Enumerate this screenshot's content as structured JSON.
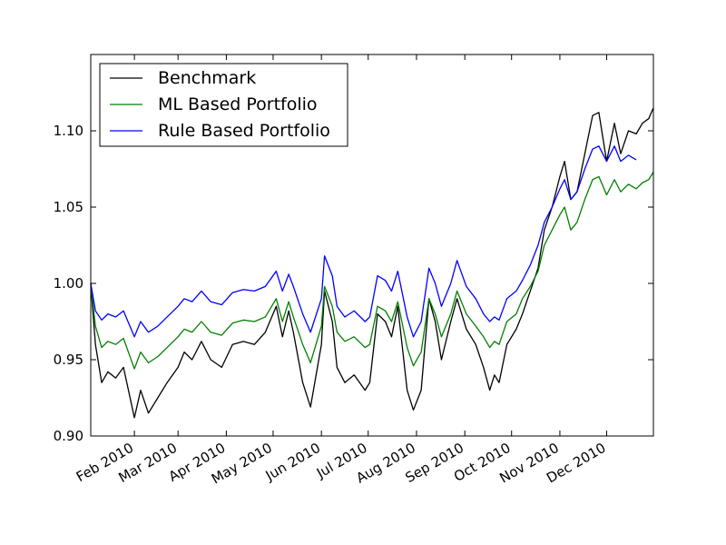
{
  "chart_data": {
    "type": "line",
    "title": "",
    "xlabel": "",
    "ylabel": "",
    "x_start": "2010-01-04",
    "x_end": "2010-12-31",
    "xlim": [
      "2010-01-04",
      "2010-12-31"
    ],
    "ylim": [
      0.9,
      1.15
    ],
    "x_ticks": [
      {
        "date": "2010-02-01",
        "label": "Feb 2010"
      },
      {
        "date": "2010-03-01",
        "label": "Mar 2010"
      },
      {
        "date": "2010-04-01",
        "label": "Apr 2010"
      },
      {
        "date": "2010-05-01",
        "label": "May 2010"
      },
      {
        "date": "2010-06-01",
        "label": "Jun 2010"
      },
      {
        "date": "2010-07-01",
        "label": "Jul 2010"
      },
      {
        "date": "2010-08-01",
        "label": "Aug 2010"
      },
      {
        "date": "2010-09-01",
        "label": "Sep 2010"
      },
      {
        "date": "2010-10-01",
        "label": "Oct 2010"
      },
      {
        "date": "2010-11-01",
        "label": "Nov 2010"
      },
      {
        "date": "2010-12-01",
        "label": "Dec 2010"
      }
    ],
    "y_ticks": [
      {
        "value": 0.9,
        "label": "0.90"
      },
      {
        "value": 0.95,
        "label": "0.95"
      },
      {
        "value": 1.0,
        "label": "1.00"
      },
      {
        "value": 1.05,
        "label": "1.05"
      },
      {
        "value": 1.1,
        "label": "1.10"
      }
    ],
    "grid": false,
    "legend_position": "top-left",
    "series": [
      {
        "name": "Benchmark",
        "color": "#000000",
        "points": [
          [
            "2010-01-04",
            1.0
          ],
          [
            "2010-01-07",
            0.96
          ],
          [
            "2010-01-11",
            0.935
          ],
          [
            "2010-01-15",
            0.942
          ],
          [
            "2010-01-20",
            0.938
          ],
          [
            "2010-01-25",
            0.945
          ],
          [
            "2010-02-01",
            0.912
          ],
          [
            "2010-02-05",
            0.93
          ],
          [
            "2010-02-10",
            0.915
          ],
          [
            "2010-02-16",
            0.925
          ],
          [
            "2010-02-22",
            0.935
          ],
          [
            "2010-03-01",
            0.945
          ],
          [
            "2010-03-05",
            0.955
          ],
          [
            "2010-03-10",
            0.95
          ],
          [
            "2010-03-16",
            0.962
          ],
          [
            "2010-03-22",
            0.95
          ],
          [
            "2010-03-29",
            0.945
          ],
          [
            "2010-04-05",
            0.96
          ],
          [
            "2010-04-12",
            0.962
          ],
          [
            "2010-04-19",
            0.96
          ],
          [
            "2010-04-26",
            0.968
          ],
          [
            "2010-05-03",
            0.985
          ],
          [
            "2010-05-07",
            0.965
          ],
          [
            "2010-05-11",
            0.982
          ],
          [
            "2010-05-14",
            0.968
          ],
          [
            "2010-05-20",
            0.935
          ],
          [
            "2010-05-25",
            0.919
          ],
          [
            "2010-06-01",
            0.96
          ],
          [
            "2010-06-03",
            0.995
          ],
          [
            "2010-06-08",
            0.975
          ],
          [
            "2010-06-11",
            0.945
          ],
          [
            "2010-06-16",
            0.935
          ],
          [
            "2010-06-22",
            0.94
          ],
          [
            "2010-06-29",
            0.93
          ],
          [
            "2010-07-02",
            0.935
          ],
          [
            "2010-07-07",
            0.98
          ],
          [
            "2010-07-12",
            0.975
          ],
          [
            "2010-07-16",
            0.965
          ],
          [
            "2010-07-20",
            0.985
          ],
          [
            "2010-07-26",
            0.93
          ],
          [
            "2010-07-30",
            0.917
          ],
          [
            "2010-08-04",
            0.93
          ],
          [
            "2010-08-09",
            0.99
          ],
          [
            "2010-08-13",
            0.975
          ],
          [
            "2010-08-17",
            0.95
          ],
          [
            "2010-08-23",
            0.975
          ],
          [
            "2010-08-27",
            0.99
          ],
          [
            "2010-09-02",
            0.97
          ],
          [
            "2010-09-08",
            0.96
          ],
          [
            "2010-09-13",
            0.945
          ],
          [
            "2010-09-17",
            0.93
          ],
          [
            "2010-09-20",
            0.94
          ],
          [
            "2010-09-23",
            0.935
          ],
          [
            "2010-09-28",
            0.96
          ],
          [
            "2010-10-04",
            0.97
          ],
          [
            "2010-10-08",
            0.98
          ],
          [
            "2010-10-13",
            0.995
          ],
          [
            "2010-10-18",
            1.01
          ],
          [
            "2010-10-22",
            1.035
          ],
          [
            "2010-10-27",
            1.05
          ],
          [
            "2010-11-01",
            1.07
          ],
          [
            "2010-11-04",
            1.08
          ],
          [
            "2010-11-08",
            1.055
          ],
          [
            "2010-11-12",
            1.06
          ],
          [
            "2010-11-17",
            1.085
          ],
          [
            "2010-11-22",
            1.11
          ],
          [
            "2010-11-26",
            1.112
          ],
          [
            "2010-12-01",
            1.08
          ],
          [
            "2010-12-06",
            1.105
          ],
          [
            "2010-12-10",
            1.085
          ],
          [
            "2010-12-15",
            1.1
          ],
          [
            "2010-12-20",
            1.098
          ],
          [
            "2010-12-24",
            1.105
          ],
          [
            "2010-12-28",
            1.108
          ],
          [
            "2010-12-31",
            1.115
          ]
        ]
      },
      {
        "name": "ML Based Portfolio",
        "color": "#008000",
        "points": [
          [
            "2010-01-04",
            1.0
          ],
          [
            "2010-01-07",
            0.972
          ],
          [
            "2010-01-11",
            0.958
          ],
          [
            "2010-01-15",
            0.962
          ],
          [
            "2010-01-20",
            0.96
          ],
          [
            "2010-01-25",
            0.964
          ],
          [
            "2010-02-01",
            0.944
          ],
          [
            "2010-02-05",
            0.955
          ],
          [
            "2010-02-10",
            0.948
          ],
          [
            "2010-02-16",
            0.952
          ],
          [
            "2010-02-22",
            0.958
          ],
          [
            "2010-03-01",
            0.965
          ],
          [
            "2010-03-05",
            0.97
          ],
          [
            "2010-03-10",
            0.968
          ],
          [
            "2010-03-16",
            0.975
          ],
          [
            "2010-03-22",
            0.968
          ],
          [
            "2010-03-29",
            0.966
          ],
          [
            "2010-04-05",
            0.974
          ],
          [
            "2010-04-12",
            0.976
          ],
          [
            "2010-04-19",
            0.975
          ],
          [
            "2010-04-26",
            0.978
          ],
          [
            "2010-05-03",
            0.99
          ],
          [
            "2010-05-07",
            0.975
          ],
          [
            "2010-05-11",
            0.988
          ],
          [
            "2010-05-14",
            0.978
          ],
          [
            "2010-05-20",
            0.96
          ],
          [
            "2010-05-25",
            0.948
          ],
          [
            "2010-06-01",
            0.972
          ],
          [
            "2010-06-03",
            0.998
          ],
          [
            "2010-06-08",
            0.985
          ],
          [
            "2010-06-11",
            0.968
          ],
          [
            "2010-06-16",
            0.962
          ],
          [
            "2010-06-22",
            0.965
          ],
          [
            "2010-06-29",
            0.958
          ],
          [
            "2010-07-02",
            0.96
          ],
          [
            "2010-07-07",
            0.985
          ],
          [
            "2010-07-12",
            0.982
          ],
          [
            "2010-07-16",
            0.975
          ],
          [
            "2010-07-20",
            0.988
          ],
          [
            "2010-07-26",
            0.958
          ],
          [
            "2010-07-30",
            0.946
          ],
          [
            "2010-08-04",
            0.955
          ],
          [
            "2010-08-09",
            0.99
          ],
          [
            "2010-08-13",
            0.98
          ],
          [
            "2010-08-17",
            0.965
          ],
          [
            "2010-08-23",
            0.98
          ],
          [
            "2010-08-27",
            0.995
          ],
          [
            "2010-09-02",
            0.98
          ],
          [
            "2010-09-08",
            0.972
          ],
          [
            "2010-09-13",
            0.965
          ],
          [
            "2010-09-17",
            0.958
          ],
          [
            "2010-09-20",
            0.962
          ],
          [
            "2010-09-23",
            0.96
          ],
          [
            "2010-09-28",
            0.975
          ],
          [
            "2010-10-04",
            0.98
          ],
          [
            "2010-10-08",
            0.99
          ],
          [
            "2010-10-13",
            0.998
          ],
          [
            "2010-10-18",
            1.008
          ],
          [
            "2010-10-22",
            1.025
          ],
          [
            "2010-10-27",
            1.035
          ],
          [
            "2010-11-01",
            1.045
          ],
          [
            "2010-11-04",
            1.05
          ],
          [
            "2010-11-08",
            1.035
          ],
          [
            "2010-11-12",
            1.04
          ],
          [
            "2010-11-17",
            1.055
          ],
          [
            "2010-11-22",
            1.068
          ],
          [
            "2010-11-26",
            1.07
          ],
          [
            "2010-12-01",
            1.058
          ],
          [
            "2010-12-06",
            1.068
          ],
          [
            "2010-12-10",
            1.06
          ],
          [
            "2010-12-15",
            1.065
          ],
          [
            "2010-12-20",
            1.062
          ],
          [
            "2010-12-24",
            1.066
          ],
          [
            "2010-12-28",
            1.068
          ],
          [
            "2010-12-31",
            1.073
          ]
        ]
      },
      {
        "name": "Rule Based Portfolio",
        "color": "#0000ff",
        "points": [
          [
            "2010-01-04",
            1.0
          ],
          [
            "2010-01-07",
            0.982
          ],
          [
            "2010-01-11",
            0.976
          ],
          [
            "2010-01-15",
            0.98
          ],
          [
            "2010-01-20",
            0.978
          ],
          [
            "2010-01-25",
            0.982
          ],
          [
            "2010-02-01",
            0.965
          ],
          [
            "2010-02-05",
            0.975
          ],
          [
            "2010-02-10",
            0.968
          ],
          [
            "2010-02-16",
            0.972
          ],
          [
            "2010-02-22",
            0.978
          ],
          [
            "2010-03-01",
            0.985
          ],
          [
            "2010-03-05",
            0.99
          ],
          [
            "2010-03-10",
            0.988
          ],
          [
            "2010-03-16",
            0.995
          ],
          [
            "2010-03-22",
            0.988
          ],
          [
            "2010-03-29",
            0.986
          ],
          [
            "2010-04-05",
            0.994
          ],
          [
            "2010-04-12",
            0.996
          ],
          [
            "2010-04-19",
            0.995
          ],
          [
            "2010-04-26",
            0.998
          ],
          [
            "2010-05-03",
            1.008
          ],
          [
            "2010-05-07",
            0.995
          ],
          [
            "2010-05-11",
            1.006
          ],
          [
            "2010-05-14",
            0.998
          ],
          [
            "2010-05-20",
            0.98
          ],
          [
            "2010-05-25",
            0.968
          ],
          [
            "2010-06-01",
            0.99
          ],
          [
            "2010-06-03",
            1.018
          ],
          [
            "2010-06-08",
            1.005
          ],
          [
            "2010-06-11",
            0.985
          ],
          [
            "2010-06-16",
            0.978
          ],
          [
            "2010-06-22",
            0.982
          ],
          [
            "2010-06-29",
            0.975
          ],
          [
            "2010-07-02",
            0.978
          ],
          [
            "2010-07-07",
            1.005
          ],
          [
            "2010-07-12",
            1.002
          ],
          [
            "2010-07-16",
            0.995
          ],
          [
            "2010-07-20",
            1.008
          ],
          [
            "2010-07-26",
            0.978
          ],
          [
            "2010-07-30",
            0.965
          ],
          [
            "2010-08-04",
            0.975
          ],
          [
            "2010-08-09",
            1.01
          ],
          [
            "2010-08-13",
            1.0
          ],
          [
            "2010-08-17",
            0.985
          ],
          [
            "2010-08-23",
            1.0
          ],
          [
            "2010-08-27",
            1.015
          ],
          [
            "2010-09-02",
            0.998
          ],
          [
            "2010-09-08",
            0.99
          ],
          [
            "2010-09-13",
            0.98
          ],
          [
            "2010-09-17",
            0.975
          ],
          [
            "2010-09-20",
            0.978
          ],
          [
            "2010-09-23",
            0.976
          ],
          [
            "2010-09-28",
            0.99
          ],
          [
            "2010-10-04",
            0.995
          ],
          [
            "2010-10-08",
            1.002
          ],
          [
            "2010-10-13",
            1.012
          ],
          [
            "2010-10-18",
            1.025
          ],
          [
            "2010-10-22",
            1.04
          ],
          [
            "2010-10-27",
            1.05
          ],
          [
            "2010-11-01",
            1.062
          ],
          [
            "2010-11-04",
            1.068
          ],
          [
            "2010-11-08",
            1.055
          ],
          [
            "2010-11-12",
            1.06
          ],
          [
            "2010-11-17",
            1.075
          ],
          [
            "2010-11-22",
            1.088
          ],
          [
            "2010-11-26",
            1.09
          ],
          [
            "2010-12-01",
            1.08
          ],
          [
            "2010-12-06",
            1.09
          ],
          [
            "2010-12-10",
            1.08
          ],
          [
            "2010-12-15",
            1.084
          ],
          [
            "2010-12-20",
            1.081
          ]
        ]
      }
    ]
  }
}
